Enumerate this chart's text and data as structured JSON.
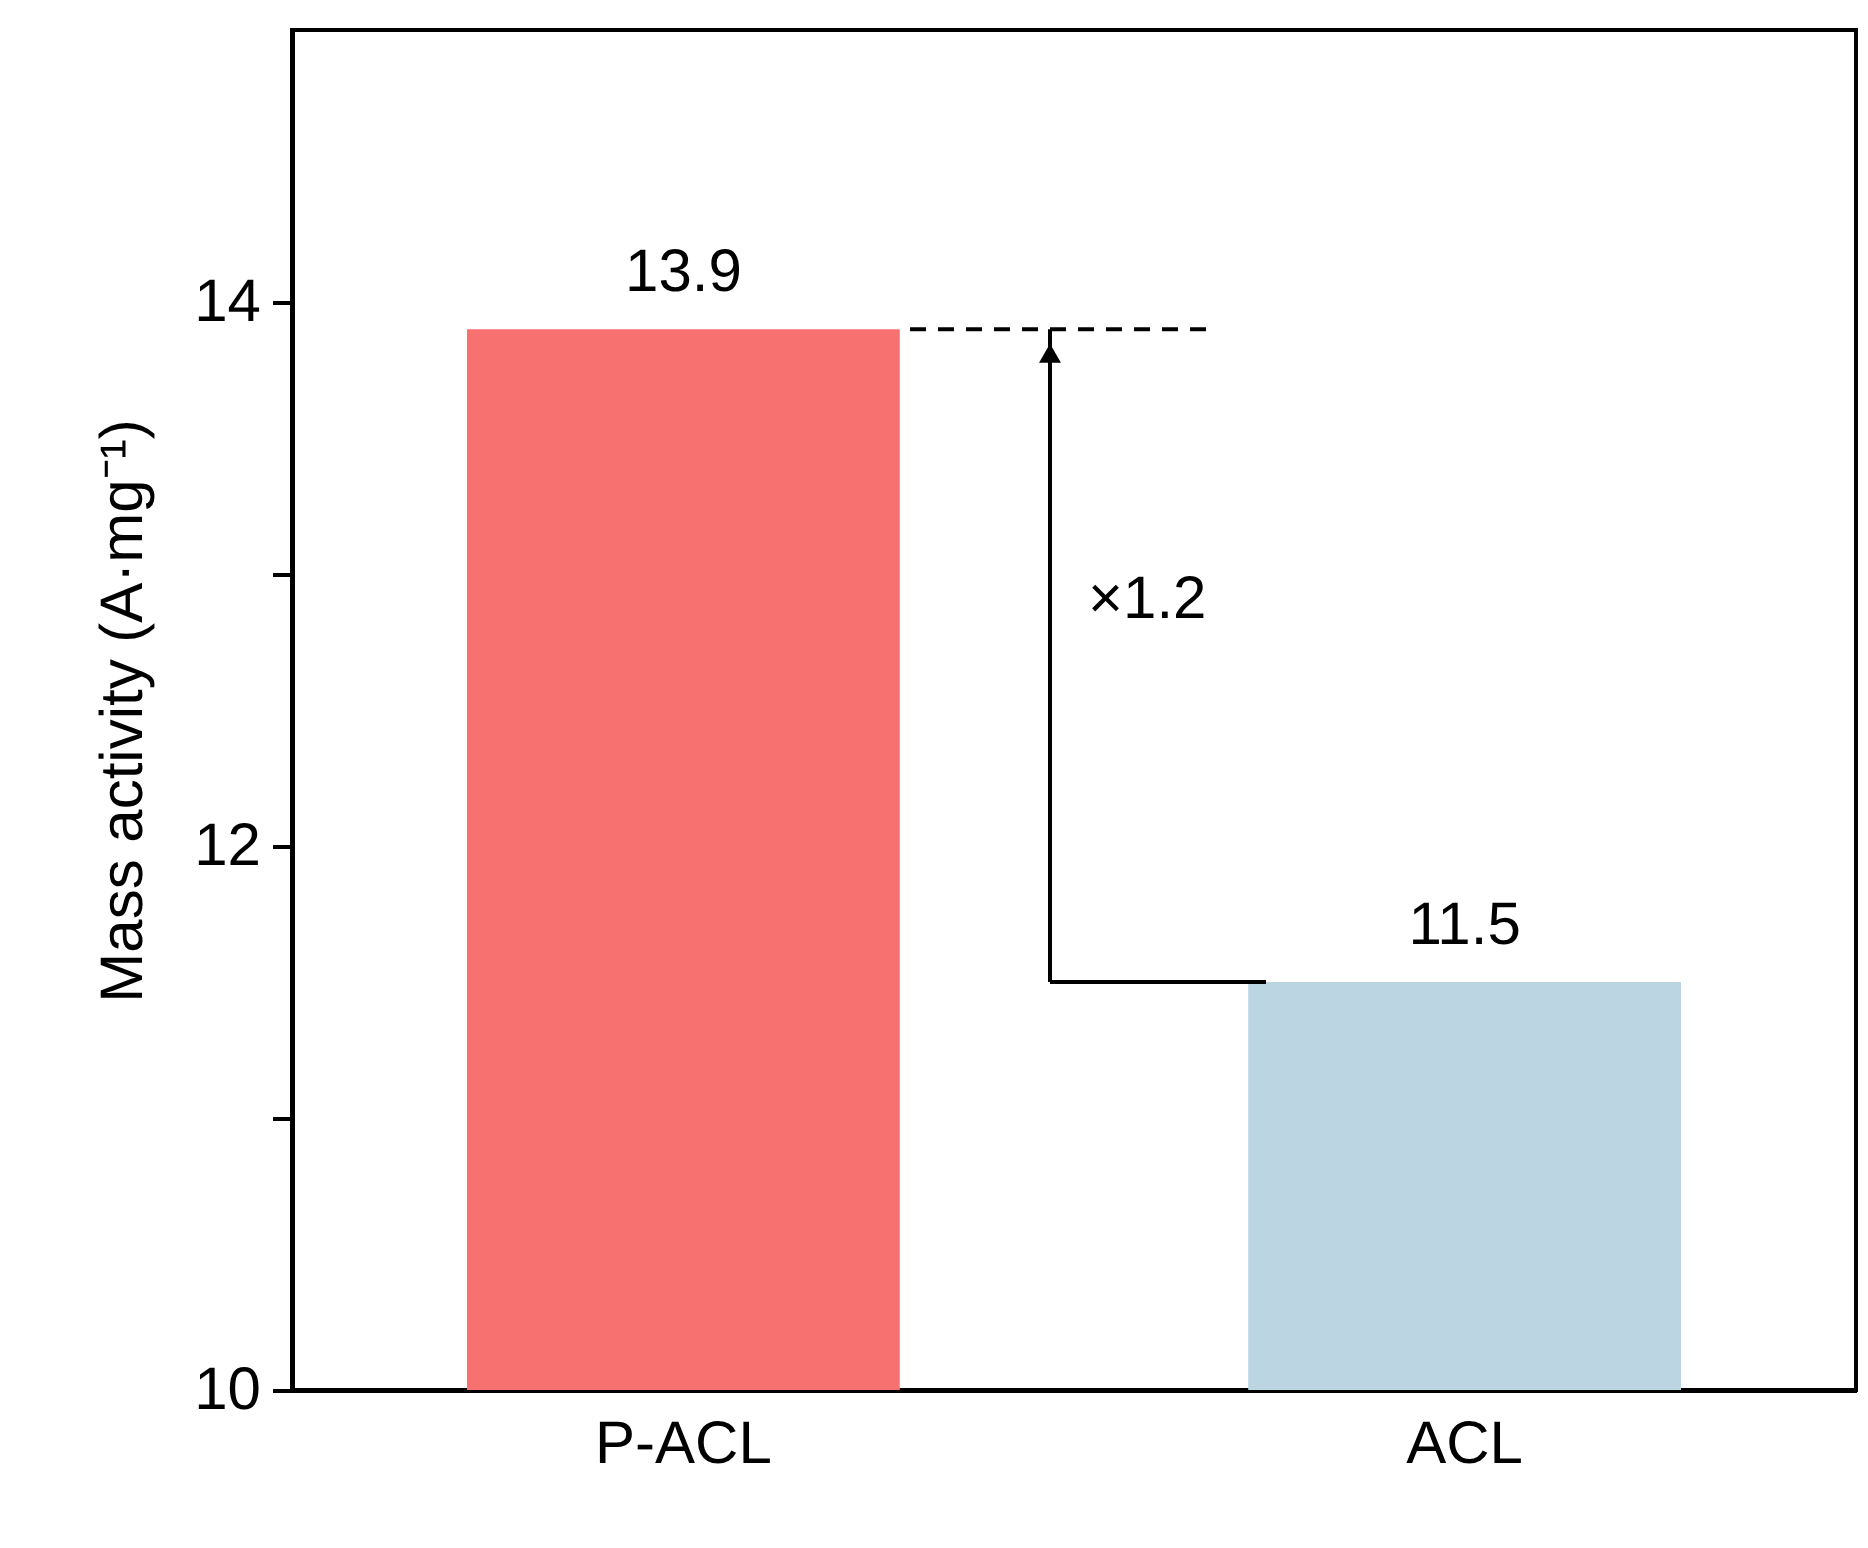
{
  "chart_data": {
    "type": "bar",
    "categories": [
      "P-ACL",
      "ACL"
    ],
    "values": [
      13.9,
      11.5
    ],
    "colors": [
      "#f87171",
      "#bcd5e3"
    ],
    "ylabel": "Mass activity (A·mg⁻¹)",
    "ylim": [
      10,
      15
    ],
    "yticks": [
      10,
      {
        "value": 11,
        "label": null
      },
      12,
      {
        "value": 13,
        "label": null
      },
      14
    ],
    "data_labels": true,
    "annotations": [
      "×1.2"
    ],
    "grid": false
  }
}
